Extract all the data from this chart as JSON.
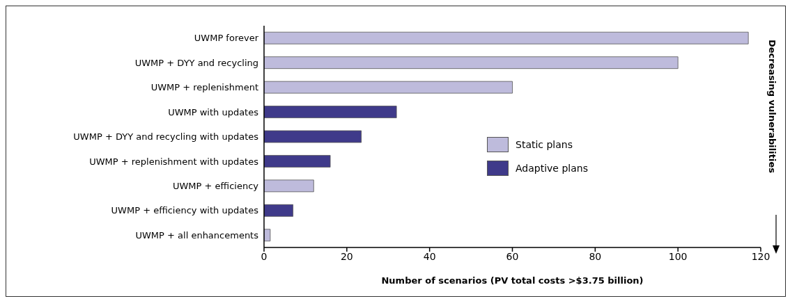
{
  "chart_data": {
    "type": "bar",
    "orientation": "horizontal",
    "stacked": true,
    "categories": [
      "UWMP forever",
      "UWMP + DYY and recycling",
      "UWMP + replenishment",
      "UWMP with updates",
      "UWMP + DYY and recycling with updates",
      "UWMP + replenishment with updates",
      "UWMP + efficiency",
      "UWMP + efficiency with updates",
      "UWMP + all enhancements"
    ],
    "series": [
      {
        "name": "Static plans",
        "color": "#bebbdc",
        "values": [
          117,
          100,
          60,
          null,
          null,
          null,
          12,
          null,
          1.5
        ]
      },
      {
        "name": "Adaptive plans",
        "color": "#3f3a8a",
        "values": [
          null,
          null,
          null,
          32,
          23.5,
          16,
          null,
          7,
          null
        ]
      }
    ],
    "xlabel": "Number of scenarios (PV total costs >$3.75 billion)",
    "xlim": [
      0,
      120
    ],
    "xticks": [
      0,
      20,
      40,
      60,
      80,
      100,
      120
    ],
    "legend": "center right",
    "grid": false,
    "annotations": [
      "Decreasing vulnerabilities"
    ]
  }
}
